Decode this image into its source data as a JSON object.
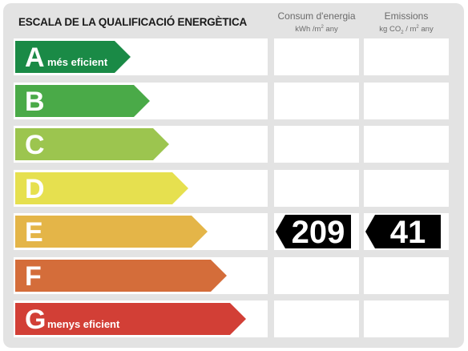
{
  "header": {
    "title": "ESCALA DE LA QUALIFICACIÓ ENERGÈTICA",
    "consum": {
      "label": "Consum d'energia",
      "unit_a": "kWh /m",
      "unit_sup": "2",
      "unit_b": " any"
    },
    "emissions": {
      "label": "Emissions",
      "unit_a": "kg CO",
      "unit_sub": "2",
      "unit_b": " / m",
      "unit_sup": "2",
      "unit_c": " any"
    }
  },
  "ratings": [
    {
      "letter": "A",
      "desc": "més eficient",
      "color": "#1a8a46"
    },
    {
      "letter": "B",
      "desc": "",
      "color": "#4aaa48"
    },
    {
      "letter": "C",
      "desc": "",
      "color": "#9cc54f"
    },
    {
      "letter": "D",
      "desc": "",
      "color": "#e6e04f"
    },
    {
      "letter": "E",
      "desc": "",
      "color": "#e4b548"
    },
    {
      "letter": "F",
      "desc": "",
      "color": "#d46d3a"
    },
    {
      "letter": "G",
      "desc": "menys eficient",
      "color": "#d23f36"
    }
  ],
  "current": {
    "rating": "E",
    "consum": "209",
    "emissions": "41"
  }
}
